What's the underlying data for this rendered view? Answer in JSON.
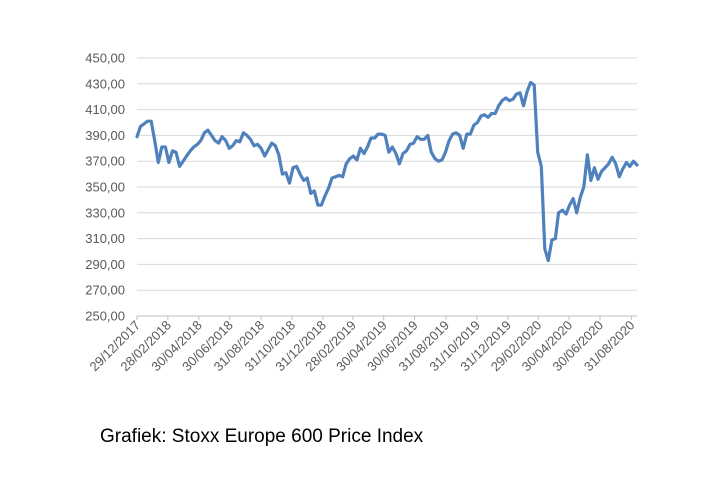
{
  "caption": "Grafiek: Stoxx Europe 600 Price Index",
  "colors": {
    "line": "#4f81bd",
    "grid": "#d9d9d9",
    "axis": "#bfbfbf",
    "text": "#595959"
  },
  "chart_data": {
    "type": "line",
    "title": "",
    "xlabel": "",
    "ylabel": "",
    "grid": true,
    "legend": "none",
    "ylim": [
      250,
      450
    ],
    "y_ticks": [
      "250,00",
      "270,00",
      "290,00",
      "310,00",
      "330,00",
      "350,00",
      "370,00",
      "390,00",
      "410,00",
      "430,00",
      "450,00"
    ],
    "x_range": [
      "2017-12-29",
      "2020-09-11"
    ],
    "x_ticks": [
      "29/12/2017",
      "28/02/2018",
      "30/04/2018",
      "30/06/2018",
      "31/08/2018",
      "31/10/2018",
      "31/12/2018",
      "28/02/2019",
      "30/04/2019",
      "30/06/2019",
      "31/08/2019",
      "31/10/2019",
      "31/12/2019",
      "29/02/2020",
      "30/04/2020",
      "30/06/2020",
      "31/08/2020"
    ],
    "series": [
      {
        "x": [
          "2017-12-29",
          "2018-01-05",
          "2018-01-12",
          "2018-01-19",
          "2018-01-26",
          "2018-02-02",
          "2018-02-09",
          "2018-02-16",
          "2018-02-23",
          "2018-03-02",
          "2018-03-09",
          "2018-03-16",
          "2018-03-23",
          "2018-03-30",
          "2018-04-06",
          "2018-04-13",
          "2018-04-20",
          "2018-04-27",
          "2018-05-04",
          "2018-05-11",
          "2018-05-18",
          "2018-05-25",
          "2018-06-01",
          "2018-06-08",
          "2018-06-15",
          "2018-06-22",
          "2018-06-29",
          "2018-07-06",
          "2018-07-13",
          "2018-07-20",
          "2018-07-27",
          "2018-08-03",
          "2018-08-10",
          "2018-08-17",
          "2018-08-24",
          "2018-08-31",
          "2018-09-07",
          "2018-09-14",
          "2018-09-21",
          "2018-09-28",
          "2018-10-05",
          "2018-10-12",
          "2018-10-19",
          "2018-10-26",
          "2018-11-02",
          "2018-11-09",
          "2018-11-16",
          "2018-11-23",
          "2018-11-30",
          "2018-12-07",
          "2018-12-14",
          "2018-12-21",
          "2018-12-28",
          "2019-01-04",
          "2019-01-11",
          "2019-01-18",
          "2019-01-25",
          "2019-02-01",
          "2019-02-08",
          "2019-02-15",
          "2019-02-22",
          "2019-03-01",
          "2019-03-08",
          "2019-03-15",
          "2019-03-22",
          "2019-03-29",
          "2019-04-05",
          "2019-04-12",
          "2019-04-19",
          "2019-04-26",
          "2019-05-03",
          "2019-05-10",
          "2019-05-17",
          "2019-05-24",
          "2019-05-31",
          "2019-06-07",
          "2019-06-14",
          "2019-06-21",
          "2019-06-28",
          "2019-07-05",
          "2019-07-12",
          "2019-07-19",
          "2019-07-26",
          "2019-08-02",
          "2019-08-09",
          "2019-08-16",
          "2019-08-23",
          "2019-08-30",
          "2019-09-06",
          "2019-09-13",
          "2019-09-20",
          "2019-09-27",
          "2019-10-04",
          "2019-10-11",
          "2019-10-18",
          "2019-10-25",
          "2019-11-01",
          "2019-11-08",
          "2019-11-15",
          "2019-11-22",
          "2019-11-29",
          "2019-12-06",
          "2019-12-13",
          "2019-12-20",
          "2019-12-27",
          "2020-01-03",
          "2020-01-10",
          "2020-01-17",
          "2020-01-24",
          "2020-01-31",
          "2020-02-07",
          "2020-02-14",
          "2020-02-21",
          "2020-02-28",
          "2020-03-06",
          "2020-03-13",
          "2020-03-20",
          "2020-03-27",
          "2020-04-03",
          "2020-04-09",
          "2020-04-17",
          "2020-04-24",
          "2020-05-01",
          "2020-05-08",
          "2020-05-15",
          "2020-05-22",
          "2020-05-29",
          "2020-06-05",
          "2020-06-12",
          "2020-06-19",
          "2020-06-26",
          "2020-07-03",
          "2020-07-10",
          "2020-07-17",
          "2020-07-24",
          "2020-07-31",
          "2020-08-07",
          "2020-08-14",
          "2020-08-21",
          "2020-08-28",
          "2020-09-04",
          "2020-09-11"
        ],
        "values": [
          389,
          397,
          399,
          401,
          401,
          386,
          369,
          381,
          381,
          369,
          378,
          377,
          366,
          370,
          374,
          378,
          381,
          383,
          386,
          392,
          394,
          390,
          386,
          384,
          389,
          386,
          380,
          382,
          386,
          385,
          392,
          390,
          387,
          382,
          383,
          380,
          374,
          379,
          384,
          382,
          375,
          360,
          361,
          353,
          365,
          366,
          360,
          355,
          357,
          345,
          347,
          336,
          336,
          343,
          349,
          357,
          358,
          359,
          358,
          368,
          372,
          374,
          371,
          380,
          376,
          381,
          388,
          388,
          391,
          391,
          390,
          377,
          381,
          376,
          368,
          376,
          378,
          383,
          384,
          389,
          387,
          387,
          390,
          377,
          372,
          370,
          371,
          377,
          386,
          391,
          392,
          390,
          380,
          391,
          391,
          398,
          400,
          405,
          406,
          404,
          407,
          407,
          413,
          417,
          419,
          417,
          418,
          422,
          423,
          413,
          424,
          431,
          429,
          377,
          366,
          302,
          293,
          309,
          310,
          330,
          332,
          329,
          336,
          341,
          330,
          342,
          350,
          375,
          355,
          365,
          356,
          362,
          365,
          368,
          373,
          368,
          358,
          364,
          369,
          366,
          370,
          367
        ]
      }
    ]
  }
}
